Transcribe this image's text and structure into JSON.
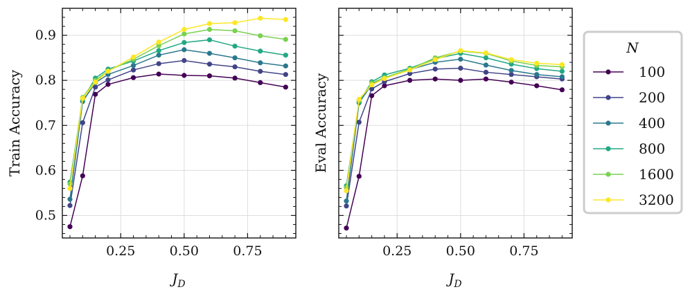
{
  "chart_data": [
    {
      "type": "line",
      "panel": "left",
      "xlabel_main": "J",
      "xlabel_sub": "D",
      "ylabel": "Train Accuracy",
      "xlim": [
        0.02,
        0.94
      ],
      "ylim": [
        0.45,
        0.96
      ],
      "xticks": [
        0.25,
        0.5,
        0.75
      ],
      "xtick_labels": [
        "0.25",
        "0.50",
        "0.75"
      ],
      "yticks": [
        0.5,
        0.6,
        0.7,
        0.8,
        0.9
      ],
      "ytick_labels": [
        "0.5",
        "0.6",
        "0.7",
        "0.8",
        "0.9"
      ],
      "grid": true,
      "x": [
        0.05,
        0.1,
        0.15,
        0.2,
        0.3,
        0.4,
        0.5,
        0.6,
        0.7,
        0.8,
        0.9
      ],
      "series": [
        {
          "name": "100",
          "values": [
            0.475,
            0.588,
            0.769,
            0.791,
            0.806,
            0.814,
            0.811,
            0.81,
            0.805,
            0.795,
            0.785
          ]
        },
        {
          "name": "200",
          "values": [
            0.522,
            0.706,
            0.785,
            0.801,
            0.823,
            0.837,
            0.844,
            0.836,
            0.83,
            0.82,
            0.813
          ]
        },
        {
          "name": "400",
          "values": [
            0.536,
            0.753,
            0.795,
            0.813,
            0.833,
            0.856,
            0.868,
            0.86,
            0.85,
            0.839,
            0.832
          ]
        },
        {
          "name": "800",
          "values": [
            0.574,
            0.757,
            0.805,
            0.825,
            0.843,
            0.866,
            0.884,
            0.89,
            0.876,
            0.865,
            0.856
          ]
        },
        {
          "name": "1600",
          "values": [
            0.57,
            0.762,
            0.8,
            0.821,
            0.847,
            0.877,
            0.903,
            0.913,
            0.91,
            0.899,
            0.891
          ]
        },
        {
          "name": "3200",
          "values": [
            0.56,
            0.76,
            0.796,
            0.82,
            0.852,
            0.885,
            0.913,
            0.926,
            0.928,
            0.938,
            0.935
          ]
        }
      ]
    },
    {
      "type": "line",
      "panel": "right",
      "xlabel_main": "J",
      "xlabel_sub": "D",
      "ylabel": "Eval Accuracy",
      "xlim": [
        0.02,
        0.94
      ],
      "ylim": [
        0.45,
        0.96
      ],
      "xticks": [
        0.25,
        0.5,
        0.75
      ],
      "xtick_labels": [
        "0.25",
        "0.50",
        "0.75"
      ],
      "yticks": [
        0.5,
        0.6,
        0.7,
        0.8,
        0.9
      ],
      "ytick_labels": [],
      "grid": true,
      "x": [
        0.05,
        0.1,
        0.15,
        0.2,
        0.3,
        0.4,
        0.5,
        0.6,
        0.7,
        0.8,
        0.9
      ],
      "series": [
        {
          "name": "100",
          "values": [
            0.472,
            0.587,
            0.766,
            0.788,
            0.8,
            0.803,
            0.8,
            0.803,
            0.796,
            0.788,
            0.779
          ]
        },
        {
          "name": "200",
          "values": [
            0.521,
            0.707,
            0.781,
            0.797,
            0.815,
            0.825,
            0.827,
            0.818,
            0.813,
            0.808,
            0.803
          ]
        },
        {
          "name": "400",
          "values": [
            0.532,
            0.75,
            0.791,
            0.805,
            0.824,
            0.84,
            0.847,
            0.834,
            0.822,
            0.813,
            0.808
          ]
        },
        {
          "name": "800",
          "values": [
            0.566,
            0.752,
            0.797,
            0.812,
            0.827,
            0.848,
            0.86,
            0.85,
            0.836,
            0.826,
            0.82
          ]
        },
        {
          "name": "1600",
          "values": [
            0.562,
            0.755,
            0.794,
            0.806,
            0.825,
            0.85,
            0.865,
            0.86,
            0.843,
            0.833,
            0.83
          ]
        },
        {
          "name": "3200",
          "values": [
            0.555,
            0.758,
            0.79,
            0.804,
            0.823,
            0.846,
            0.866,
            0.861,
            0.846,
            0.838,
            0.835
          ]
        }
      ]
    }
  ],
  "legend": {
    "title": "N",
    "entries": [
      "100",
      "200",
      "400",
      "800",
      "1600",
      "3200"
    ],
    "placement": "right"
  },
  "colors": {
    "100": "#440154",
    "200": "#414487",
    "400": "#2a788e",
    "800": "#22a884",
    "1600": "#7ad151",
    "3200": "#fde725"
  }
}
